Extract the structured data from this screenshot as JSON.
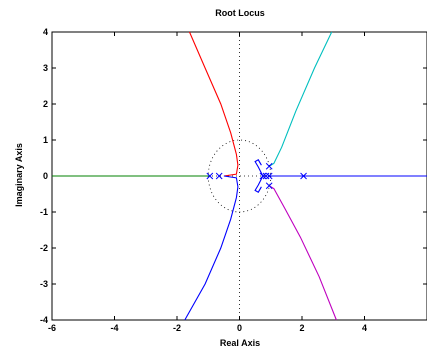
{
  "chart_data": {
    "type": "line",
    "title": "Root Locus",
    "xlabel": "Real Axis",
    "ylabel": "Imaginary Axis",
    "xlim": [
      -6,
      6
    ],
    "ylim": [
      -4,
      4
    ],
    "xticks": [
      -6,
      -4,
      -2,
      0,
      2,
      4
    ],
    "yticks": [
      4,
      3,
      2,
      1,
      0,
      -1,
      -2,
      -3,
      -4
    ],
    "grid": false,
    "unit_circle": true,
    "poles": [
      [
        -0.95,
        0
      ],
      [
        -0.65,
        0
      ],
      [
        0.75,
        0
      ],
      [
        0.85,
        0
      ],
      [
        0.95,
        0
      ],
      [
        2.05,
        0
      ],
      [
        0.95,
        0.27
      ],
      [
        0.95,
        -0.27
      ]
    ],
    "series": [
      {
        "color": "#ff0000",
        "points": [
          [
            -1.6,
            4
          ],
          [
            -1.1,
            3
          ],
          [
            -0.6,
            2
          ],
          [
            -0.28,
            1.2
          ],
          [
            -0.1,
            0.6
          ],
          [
            -0.05,
            0.3
          ],
          [
            -0.1,
            0.05
          ],
          [
            -0.5,
            0
          ]
        ]
      },
      {
        "color": "#0000ff",
        "points": [
          [
            -0.5,
            0
          ],
          [
            -0.1,
            -0.05
          ],
          [
            -0.05,
            -0.3
          ],
          [
            -0.1,
            -0.6
          ],
          [
            -0.28,
            -1.2
          ],
          [
            -0.6,
            -2
          ],
          [
            -1.1,
            -3
          ],
          [
            -1.75,
            -4
          ]
        ]
      },
      {
        "color": "#008000",
        "points": [
          [
            -6,
            0
          ],
          [
            -0.95,
            0
          ]
        ]
      },
      {
        "color": "#0000ff",
        "points": [
          [
            0.95,
            0
          ],
          [
            6,
            0
          ]
        ]
      },
      {
        "color": "#00bfbf",
        "points": [
          [
            0.95,
            0.27
          ],
          [
            1.1,
            0.35
          ],
          [
            1.35,
            0.8
          ],
          [
            1.8,
            1.8
          ],
          [
            2.4,
            3
          ],
          [
            2.95,
            4
          ]
        ]
      },
      {
        "color": "#bf00bf",
        "points": [
          [
            0.95,
            -0.27
          ],
          [
            1.1,
            -0.35
          ],
          [
            1.45,
            -0.9
          ],
          [
            1.95,
            -1.7
          ],
          [
            2.55,
            -2.8
          ],
          [
            3.1,
            -4
          ]
        ]
      },
      {
        "color": "#0000ff",
        "points": [
          [
            0.75,
            0
          ],
          [
            0.6,
            0.25
          ],
          [
            0.5,
            0.4
          ],
          [
            0.6,
            0.45
          ],
          [
            0.7,
            0.3
          ]
        ]
      },
      {
        "color": "#0000ff",
        "points": [
          [
            0.75,
            0
          ],
          [
            0.6,
            -0.25
          ],
          [
            0.5,
            -0.4
          ],
          [
            0.6,
            -0.45
          ],
          [
            0.7,
            -0.3
          ]
        ]
      }
    ]
  }
}
